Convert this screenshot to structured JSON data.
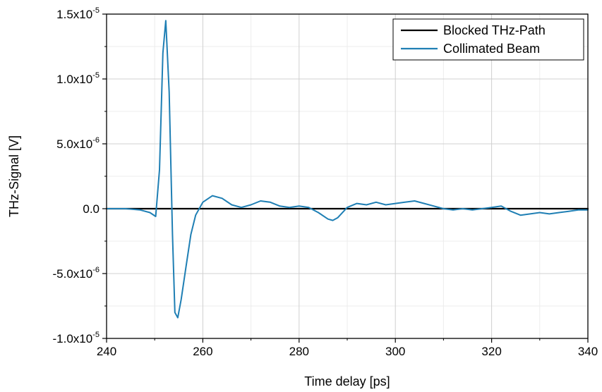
{
  "chart_data": {
    "type": "line",
    "xlabel": "Time delay [ps]",
    "ylabel": "THz-Signal [V]",
    "xlim": [
      240,
      340
    ],
    "ylim": [
      -1e-05,
      1.5e-05
    ],
    "x_ticks": [
      240,
      260,
      280,
      300,
      320,
      340
    ],
    "x_tick_labels": [
      "240",
      "260",
      "280",
      "300",
      "320",
      "340"
    ],
    "y_ticks": [
      -1e-05,
      -5e-06,
      0,
      5e-06,
      1e-05,
      1.5e-05
    ],
    "y_tick_labels": [
      {
        "base": "-1.0x10",
        "exp": "-5"
      },
      {
        "base": "-5.0x10",
        "exp": "-6"
      },
      {
        "base": "0.0",
        "exp": ""
      },
      {
        "base": "5.0x10",
        "exp": "-6"
      },
      {
        "base": "1.0x10",
        "exp": "-5"
      },
      {
        "base": "1.5x10",
        "exp": "-5"
      }
    ],
    "grid": true,
    "legend_position": "top-right",
    "series": [
      {
        "name": "Blocked THz-Path",
        "color": "#000000",
        "x": [
          240,
          250,
          260,
          270,
          280,
          290,
          300,
          310,
          320,
          330,
          340
        ],
        "y": [
          0,
          0,
          0,
          0,
          0,
          0,
          0,
          0,
          0,
          0,
          0
        ]
      },
      {
        "name": "Collimated Beam",
        "color": "#1f7fb4",
        "x": [
          240,
          244,
          247,
          249,
          250.2,
          251,
          251.7,
          252.3,
          253,
          253.7,
          254.2,
          254.8,
          255.5,
          256.5,
          257.5,
          258.5,
          260,
          262,
          264,
          266,
          268,
          270,
          272,
          274,
          276,
          278,
          280,
          282,
          284,
          286,
          287,
          288,
          290,
          292,
          294,
          296,
          298,
          300,
          302,
          304,
          306,
          308,
          310,
          312,
          314,
          316,
          318,
          320,
          322,
          324,
          326,
          328,
          330,
          332,
          334,
          336,
          338,
          340
        ],
        "y": [
          0,
          0,
          -1e-07,
          -3e-07,
          -6e-07,
          3e-06,
          1.2e-05,
          1.45e-05,
          9e-06,
          -2e-06,
          -8e-06,
          -8.4e-06,
          -7e-06,
          -4.5e-06,
          -2e-06,
          -5e-07,
          5e-07,
          1e-06,
          8e-07,
          3e-07,
          1e-07,
          3e-07,
          6e-07,
          5e-07,
          2e-07,
          1e-07,
          2e-07,
          1e-07,
          -3e-07,
          -8e-07,
          -9e-07,
          -7e-07,
          1e-07,
          4e-07,
          3e-07,
          5e-07,
          3e-07,
          4e-07,
          5e-07,
          6e-07,
          4e-07,
          2e-07,
          0,
          -1e-07,
          0,
          -1e-07,
          0,
          1e-07,
          2e-07,
          -2e-07,
          -5e-07,
          -4e-07,
          -3e-07,
          -4e-07,
          -3e-07,
          -2e-07,
          -1e-07,
          -1e-07
        ]
      }
    ]
  }
}
